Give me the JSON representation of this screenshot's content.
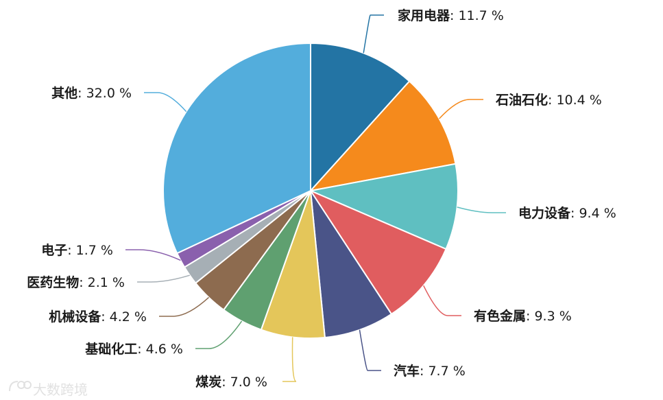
{
  "chart_data": {
    "type": "pie",
    "unit": "%",
    "slices": [
      {
        "label": "家用电器",
        "value": 11.7,
        "value_text": "11.7 %",
        "color": "#2374a4"
      },
      {
        "label": "石油石化",
        "value": 10.4,
        "value_text": "10.4 %",
        "color": "#f58a1c"
      },
      {
        "label": "电力设备",
        "value": 9.4,
        "value_text": "9.4 %",
        "color": "#5fbfc1"
      },
      {
        "label": "有色金属",
        "value": 9.3,
        "value_text": "9.3 %",
        "color": "#e05d5f"
      },
      {
        "label": "汽车",
        "value": 7.7,
        "value_text": "7.7 %",
        "color": "#4a5488"
      },
      {
        "label": "煤炭",
        "value": 7.0,
        "value_text": "7.0 %",
        "color": "#e4c65a"
      },
      {
        "label": "基础化工",
        "value": 4.6,
        "value_text": "4.6 %",
        "color": "#5fa070"
      },
      {
        "label": "机械设备",
        "value": 4.2,
        "value_text": "4.2 %",
        "color": "#8d6b4f"
      },
      {
        "label": "医药生物",
        "value": 2.1,
        "value_text": "2.1 %",
        "color": "#a6afb5"
      },
      {
        "label": "电子",
        "value": 1.7,
        "value_text": "1.7 %",
        "color": "#8a60ad"
      },
      {
        "label": "其他",
        "value": 32.0,
        "value_text": "32.0 %",
        "color": "#53addc"
      }
    ]
  },
  "watermark": {
    "text": "大数跨境"
  }
}
